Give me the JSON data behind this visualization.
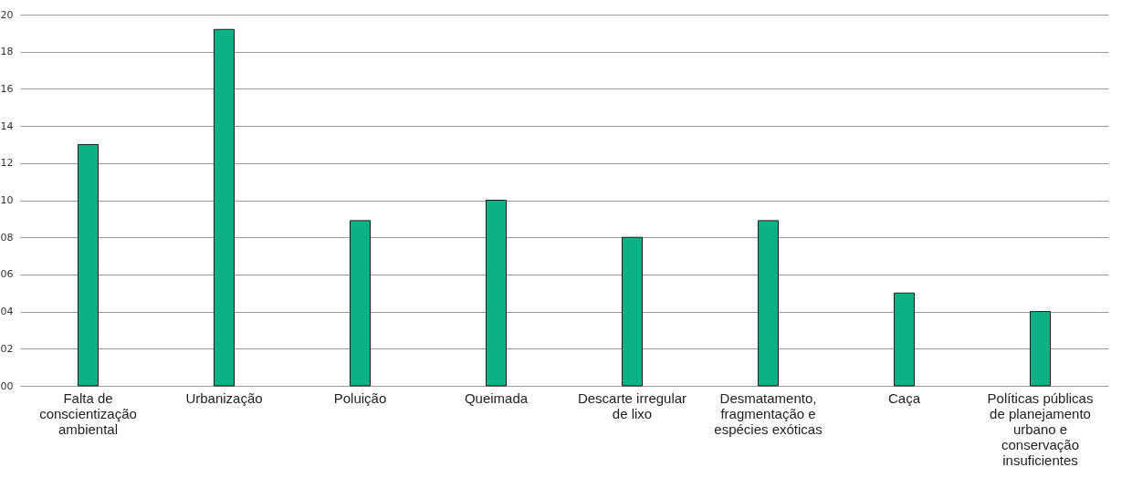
{
  "chart_data": {
    "type": "bar",
    "categories": [
      "Falta de conscientização ambiental",
      "Urbanização",
      "Poluição",
      "Queimada",
      "Descarte irregular de lixo",
      "Desmatamento, fragmentação e espécies exóticas",
      "Caça",
      "Políticas públicas de planejamento urbano e conservação insuficientes"
    ],
    "values": [
      13,
      19.2,
      8.9,
      10,
      8,
      8.9,
      5,
      4
    ],
    "color": "#0bb286",
    "ylim": [
      0,
      20
    ],
    "yticks": [
      {
        "value": 0,
        "label": "00"
      },
      {
        "value": 2,
        "label": "02"
      },
      {
        "value": 4,
        "label": "04"
      },
      {
        "value": 6,
        "label": "06"
      },
      {
        "value": 8,
        "label": "08"
      },
      10,
      12,
      14,
      16,
      18,
      20
    ],
    "grid": "y"
  }
}
